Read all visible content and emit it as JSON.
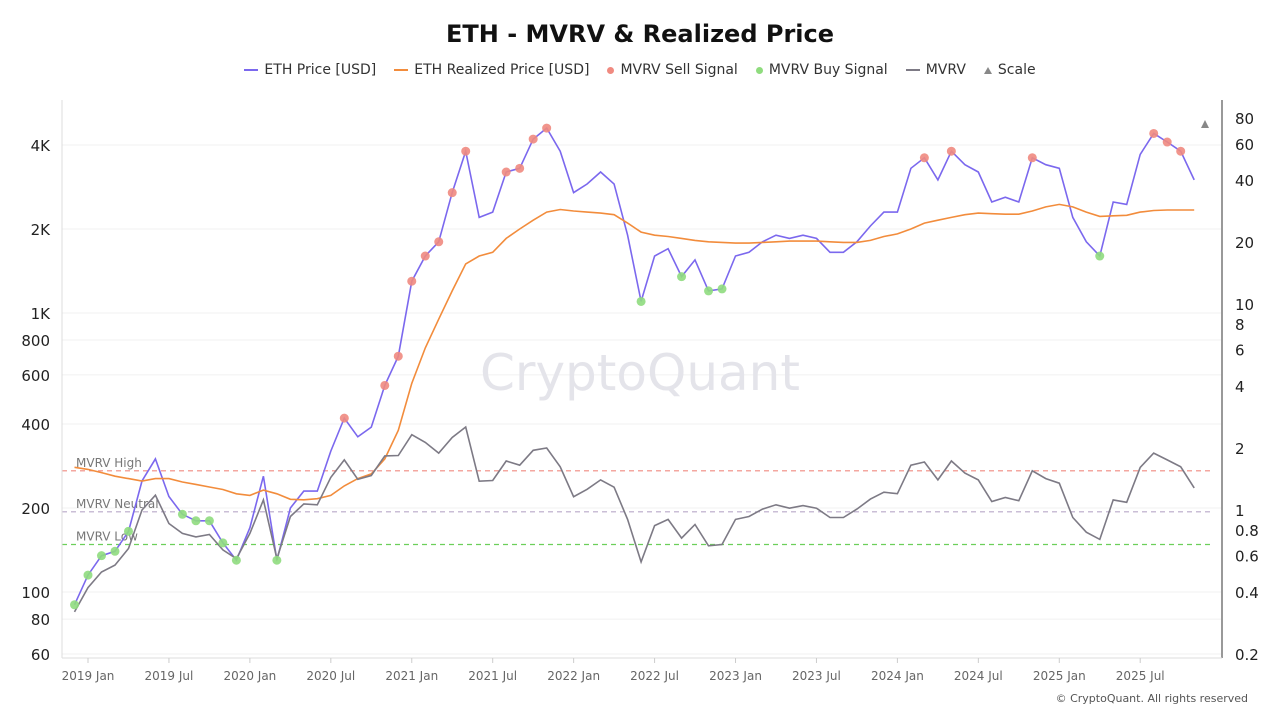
{
  "chart_data": {
    "type": "line",
    "title": "ETH - MVRV & Realized Price",
    "legend": [
      {
        "name": "ETH Price [USD]",
        "color": "#7b68ee",
        "kind": "line"
      },
      {
        "name": "ETH Realized Price [USD]",
        "color": "#f28c3c",
        "kind": "line"
      },
      {
        "name": "MVRV Sell Signal",
        "color": "#f08a80",
        "kind": "dot"
      },
      {
        "name": "MVRV Buy Signal",
        "color": "#8fdc7e",
        "kind": "dot"
      },
      {
        "name": "MVRV",
        "color": "#7d7a85",
        "kind": "line"
      },
      {
        "name": "Scale",
        "color": "#888888",
        "kind": "triangle"
      }
    ],
    "legend_position": "top",
    "x_ticks": [
      "2019 Jan",
      "2019 Jul",
      "2020 Jan",
      "2020 Jul",
      "2021 Jan",
      "2021 Jul",
      "2022 Jan",
      "2022 Jul",
      "2023 Jan",
      "2023 Jul",
      "2024 Jan",
      "2024 Jul",
      "2025 Jan",
      "2025 Jul"
    ],
    "left_axis": {
      "scale": "log",
      "range": [
        60,
        5000
      ],
      "ticks": [
        {
          "v": 60,
          "label": "60"
        },
        {
          "v": 80,
          "label": "80"
        },
        {
          "v": 100,
          "label": "100"
        },
        {
          "v": 200,
          "label": "200"
        },
        {
          "v": 400,
          "label": "400"
        },
        {
          "v": 600,
          "label": "600"
        },
        {
          "v": 800,
          "label": "800"
        },
        {
          "v": 1000,
          "label": "1K"
        },
        {
          "v": 2000,
          "label": "2K"
        },
        {
          "v": 4000,
          "label": "4K"
        }
      ]
    },
    "right_axis": {
      "scale": "log",
      "range": [
        0.2,
        90
      ],
      "ticks": [
        {
          "v": 0.2,
          "label": "0.2"
        },
        {
          "v": 0.4,
          "label": "0.4"
        },
        {
          "v": 0.6,
          "label": "0.6"
        },
        {
          "v": 0.8,
          "label": "0.8"
        },
        {
          "v": 1,
          "label": "1"
        },
        {
          "v": 2,
          "label": "2"
        },
        {
          "v": 4,
          "label": "4"
        },
        {
          "v": 6,
          "label": "6"
        },
        {
          "v": 8,
          "label": "8"
        },
        {
          "v": 10,
          "label": "10"
        },
        {
          "v": 20,
          "label": "20"
        },
        {
          "v": 40,
          "label": "40"
        },
        {
          "v": 60,
          "label": "60"
        },
        {
          "v": 80,
          "label": "80"
        }
      ]
    },
    "grid": true,
    "reference_lines": [
      {
        "label": "MVRV High",
        "value": 1.55,
        "color": "#f08a80"
      },
      {
        "label": "MVRV Neutral",
        "value": 0.98,
        "color": "#b8a9c9"
      },
      {
        "label": "MVRV Low",
        "value": 0.68,
        "color": "#6ccf5a"
      }
    ],
    "dates": [
      "2018-12",
      "2019-01",
      "2019-02",
      "2019-03",
      "2019-04",
      "2019-05",
      "2019-06",
      "2019-07",
      "2019-08",
      "2019-09",
      "2019-10",
      "2019-11",
      "2019-12",
      "2020-01",
      "2020-02",
      "2020-03",
      "2020-04",
      "2020-05",
      "2020-06",
      "2020-07",
      "2020-08",
      "2020-09",
      "2020-10",
      "2020-11",
      "2020-12",
      "2021-01",
      "2021-02",
      "2021-03",
      "2021-04",
      "2021-05",
      "2021-06",
      "2021-07",
      "2021-08",
      "2021-09",
      "2021-10",
      "2021-11",
      "2021-12",
      "2022-01",
      "2022-02",
      "2022-03",
      "2022-04",
      "2022-05",
      "2022-06",
      "2022-07",
      "2022-08",
      "2022-09",
      "2022-10",
      "2022-11",
      "2022-12",
      "2023-01",
      "2023-02",
      "2023-03",
      "2023-04",
      "2023-05",
      "2023-06",
      "2023-07",
      "2023-08",
      "2023-09",
      "2023-10",
      "2023-11",
      "2023-12",
      "2024-01",
      "2024-02",
      "2024-03",
      "2024-04",
      "2024-05",
      "2024-06",
      "2024-07",
      "2024-08",
      "2024-09",
      "2024-10",
      "2024-11",
      "2024-12",
      "2025-01",
      "2025-02",
      "2025-03",
      "2025-04",
      "2025-05",
      "2025-06",
      "2025-07",
      "2025-08",
      "2025-09",
      "2025-10",
      "2025-11"
    ],
    "series": [
      {
        "name": "ETH Price [USD]",
        "axis": "left",
        "values": [
          90,
          115,
          135,
          140,
          165,
          250,
          300,
          220,
          190,
          180,
          180,
          150,
          130,
          170,
          260,
          130,
          200,
          230,
          230,
          320,
          420,
          360,
          390,
          550,
          700,
          1300,
          1600,
          1800,
          2700,
          3800,
          2200,
          2300,
          3200,
          3300,
          4200,
          4600,
          3800,
          2700,
          2900,
          3200,
          2900,
          1900,
          1100,
          1600,
          1700,
          1350,
          1550,
          1200,
          1220,
          1600,
          1650,
          1800,
          1900,
          1850,
          1900,
          1850,
          1650,
          1650,
          1800,
          2050,
          2300,
          2300,
          3300,
          3600,
          3000,
          3800,
          3400,
          3200,
          2500,
          2600,
          2500,
          3600,
          3400,
          3300,
          2200,
          1800,
          1600,
          2500,
          2450,
          3700,
          4400,
          4100,
          3800,
          3000
        ]
      },
      {
        "name": "ETH Realized Price [USD]",
        "axis": "left",
        "values": [
          280,
          275,
          268,
          260,
          255,
          250,
          255,
          255,
          248,
          243,
          238,
          233,
          225,
          222,
          232,
          225,
          215,
          214,
          216,
          222,
          240,
          255,
          265,
          300,
          380,
          560,
          750,
          950,
          1200,
          1500,
          1600,
          1650,
          1850,
          2000,
          2150,
          2300,
          2350,
          2320,
          2300,
          2280,
          2250,
          2100,
          1950,
          1900,
          1880,
          1850,
          1820,
          1800,
          1790,
          1780,
          1780,
          1790,
          1800,
          1810,
          1810,
          1810,
          1800,
          1790,
          1790,
          1820,
          1880,
          1920,
          2000,
          2100,
          2150,
          2200,
          2250,
          2280,
          2270,
          2260,
          2260,
          2320,
          2400,
          2450,
          2400,
          2300,
          2220,
          2230,
          2240,
          2300,
          2330,
          2340,
          2340,
          2340
        ]
      },
      {
        "name": "MVRV",
        "axis": "right",
        "values": [
          0.32,
          0.42,
          0.5,
          0.54,
          0.65,
          1.0,
          1.18,
          0.86,
          0.77,
          0.74,
          0.76,
          0.64,
          0.58,
          0.77,
          1.12,
          0.58,
          0.93,
          1.07,
          1.06,
          1.44,
          1.75,
          1.41,
          1.47,
          1.83,
          1.84,
          2.32,
          2.13,
          1.89,
          2.25,
          2.53,
          1.38,
          1.39,
          1.73,
          1.65,
          1.95,
          2.0,
          1.62,
          1.16,
          1.26,
          1.4,
          1.29,
          0.9,
          0.56,
          0.84,
          0.9,
          0.73,
          0.85,
          0.67,
          0.68,
          0.9,
          0.93,
          1.01,
          1.06,
          1.02,
          1.05,
          1.02,
          0.92,
          0.92,
          1.01,
          1.13,
          1.22,
          1.2,
          1.65,
          1.71,
          1.4,
          1.73,
          1.51,
          1.4,
          1.1,
          1.15,
          1.11,
          1.55,
          1.42,
          1.35,
          0.92,
          0.78,
          0.72,
          1.12,
          1.09,
          1.61,
          1.89,
          1.75,
          1.62,
          1.28
        ]
      }
    ],
    "sell_signals": [
      "2020-08",
      "2020-11",
      "2020-12",
      "2021-01",
      "2021-02",
      "2021-03",
      "2021-04",
      "2021-05",
      "2021-08",
      "2021-09",
      "2021-10",
      "2021-11",
      "2024-03",
      "2024-05",
      "2024-11",
      "2025-08",
      "2025-09",
      "2025-10"
    ],
    "buy_signals": [
      "2018-12",
      "2019-01",
      "2019-02",
      "2019-03",
      "2019-04",
      "2019-08",
      "2019-09",
      "2019-10",
      "2019-11",
      "2019-12",
      "2020-03",
      "2022-06",
      "2022-09",
      "2022-11",
      "2022-12",
      "2025-04"
    ]
  },
  "watermark": "CryptoQuant",
  "footer": "© CryptoQuant. All rights reserved"
}
